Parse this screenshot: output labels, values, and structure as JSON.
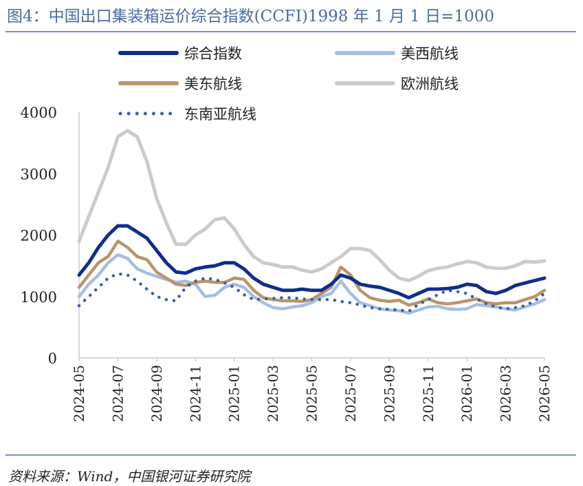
{
  "header": {
    "title": "图4：中国出口集装箱运价综合指数(CCFI)1998 年 1 月 1 日=1000"
  },
  "footer": {
    "source": "资料来源：Wind，中国银河证券研究院"
  },
  "chart_data": {
    "type": "line",
    "title": "",
    "xlabel": "",
    "ylabel": "",
    "ylim": [
      0,
      4000
    ],
    "yticks": [
      0,
      1000,
      2000,
      3000,
      4000
    ],
    "x_tick_labels": [
      "2024-05",
      "2024-07",
      "2024-09",
      "2024-11",
      "2025-01",
      "2025-03",
      "2025-05",
      "2025-07",
      "2025-09",
      "2025-11",
      "2026-01",
      "2026-03",
      "2026-05"
    ],
    "x_range_months": [
      0,
      24
    ],
    "grid": false,
    "legend_position": "top",
    "series": [
      {
        "name": "综合指数",
        "color": "#0f2d8c",
        "style": "solid-thick",
        "x": [
          0,
          0.5,
          1,
          1.5,
          2,
          2.5,
          3,
          3.5,
          4,
          4.5,
          5,
          5.5,
          6,
          6.5,
          7,
          7.5,
          8,
          8.5,
          9,
          9.5,
          10,
          10.5,
          11,
          11.5,
          12,
          12.5,
          13,
          13.5,
          14,
          14.5,
          15,
          15.5,
          16,
          16.5,
          17,
          17.5,
          18,
          18.5,
          19,
          19.5,
          20,
          20.5,
          21,
          21.5,
          22,
          22.5,
          23,
          23.5,
          24
        ],
        "y": [
          1350,
          1550,
          1800,
          2000,
          2150,
          2150,
          2050,
          1950,
          1750,
          1550,
          1400,
          1380,
          1450,
          1480,
          1500,
          1550,
          1550,
          1450,
          1300,
          1200,
          1150,
          1100,
          1100,
          1120,
          1100,
          1100,
          1200,
          1350,
          1300,
          1200,
          1170,
          1150,
          1100,
          1050,
          980,
          1050,
          1120,
          1120,
          1130,
          1150,
          1200,
          1180,
          1080,
          1050,
          1100,
          1180,
          1220,
          1260,
          1300
        ]
      },
      {
        "name": "美西航线",
        "color": "#a6bde3",
        "style": "solid",
        "x": [
          0,
          0.5,
          1,
          1.5,
          2,
          2.5,
          3,
          3.5,
          4,
          4.5,
          5,
          5.5,
          6,
          6.5,
          7,
          7.5,
          8,
          8.5,
          9,
          9.5,
          10,
          10.5,
          11,
          11.5,
          12,
          12.5,
          13,
          13.5,
          14,
          14.5,
          15,
          15.5,
          16,
          16.5,
          17,
          17.5,
          18,
          18.5,
          19,
          19.5,
          20,
          20.5,
          21,
          21.5,
          22,
          22.5,
          23,
          23.5,
          24
        ],
        "y": [
          1000,
          1200,
          1350,
          1550,
          1680,
          1620,
          1450,
          1380,
          1330,
          1280,
          1230,
          1250,
          1200,
          1000,
          1020,
          1150,
          1200,
          1150,
          1000,
          900,
          820,
          800,
          830,
          850,
          900,
          1000,
          1050,
          1250,
          1050,
          900,
          850,
          800,
          780,
          770,
          730,
          780,
          830,
          840,
          800,
          790,
          800,
          870,
          850,
          830,
          800,
          780,
          830,
          880,
          950
        ]
      },
      {
        "name": "美东航线",
        "color": "#b8956a",
        "style": "solid",
        "x": [
          0,
          0.5,
          1,
          1.5,
          2,
          2.5,
          3,
          3.5,
          4,
          4.5,
          5,
          5.5,
          6,
          6.5,
          7,
          7.5,
          8,
          8.5,
          9,
          9.5,
          10,
          10.5,
          11,
          11.5,
          12,
          12.5,
          13,
          13.5,
          14,
          14.5,
          15,
          15.5,
          16,
          16.5,
          17,
          17.5,
          18,
          18.5,
          19,
          19.5,
          20,
          20.5,
          21,
          21.5,
          22,
          22.5,
          23,
          23.5,
          24
        ],
        "y": [
          1150,
          1350,
          1550,
          1650,
          1900,
          1800,
          1650,
          1600,
          1400,
          1300,
          1200,
          1180,
          1230,
          1250,
          1230,
          1230,
          1300,
          1280,
          1100,
          980,
          950,
          930,
          930,
          920,
          950,
          1050,
          1150,
          1480,
          1350,
          1100,
          980,
          940,
          920,
          940,
          860,
          900,
          960,
          900,
          880,
          900,
          930,
          960,
          900,
          880,
          900,
          900,
          950,
          1000,
          1100
        ]
      },
      {
        "name": "欧洲航线",
        "color": "#cbcbcb",
        "style": "solid-thick",
        "x": [
          0,
          0.5,
          1,
          1.5,
          2,
          2.5,
          3,
          3.5,
          4,
          4.5,
          5,
          5.5,
          6,
          6.5,
          7,
          7.5,
          8,
          8.5,
          9,
          9.5,
          10,
          10.5,
          11,
          11.5,
          12,
          12.5,
          13,
          13.5,
          14,
          14.5,
          15,
          15.5,
          16,
          16.5,
          17,
          17.5,
          18,
          18.5,
          19,
          19.5,
          20,
          20.5,
          21,
          21.5,
          22,
          22.5,
          23,
          23.5,
          24
        ],
        "y": [
          1900,
          2300,
          2700,
          3100,
          3600,
          3700,
          3600,
          3200,
          2600,
          2200,
          1850,
          1850,
          2000,
          2100,
          2250,
          2280,
          2100,
          1850,
          1650,
          1550,
          1520,
          1480,
          1480,
          1430,
          1400,
          1450,
          1550,
          1650,
          1780,
          1780,
          1750,
          1600,
          1430,
          1300,
          1260,
          1330,
          1420,
          1460,
          1480,
          1530,
          1570,
          1550,
          1480,
          1460,
          1460,
          1500,
          1570,
          1560,
          1580
        ]
      },
      {
        "name": "东南亚航线",
        "color": "#3b5fa8",
        "style": "dotted",
        "x": [
          0,
          0.5,
          1,
          1.5,
          2,
          2.5,
          3,
          3.5,
          4,
          4.5,
          5,
          5.5,
          6,
          6.5,
          7,
          7.5,
          8,
          8.5,
          9,
          9.5,
          10,
          10.5,
          11,
          11.5,
          12,
          12.5,
          13,
          13.5,
          14,
          14.5,
          15,
          15.5,
          16,
          16.5,
          17,
          17.5,
          18,
          18.5,
          19,
          19.5,
          20,
          20.5,
          21,
          21.5,
          22,
          22.5,
          23,
          23.5,
          24
        ],
        "y": [
          850,
          1000,
          1150,
          1300,
          1370,
          1350,
          1250,
          1120,
          1000,
          950,
          930,
          1150,
          1250,
          1300,
          1280,
          1220,
          1150,
          1030,
          950,
          960,
          970,
          980,
          980,
          960,
          950,
          950,
          950,
          920,
          900,
          860,
          820,
          800,
          790,
          780,
          760,
          870,
          950,
          1030,
          1100,
          1080,
          1050,
          960,
          880,
          830,
          800,
          820,
          850,
          930,
          1050
        ]
      }
    ]
  }
}
